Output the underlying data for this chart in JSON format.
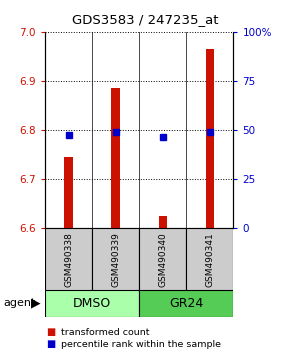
{
  "title": "GDS3583 / 247235_at",
  "samples": [
    "GSM490338",
    "GSM490339",
    "GSM490340",
    "GSM490341"
  ],
  "bar_values": [
    6.745,
    6.885,
    6.625,
    6.965
  ],
  "percentile_values": [
    47.5,
    49.0,
    46.5,
    49.0
  ],
  "ylim_left": [
    6.6,
    7.0
  ],
  "ylim_right": [
    0,
    100
  ],
  "yticks_left": [
    6.6,
    6.7,
    6.8,
    6.9,
    7.0
  ],
  "yticks_right": [
    0,
    25,
    50,
    75,
    100
  ],
  "ytick_labels_right": [
    "0",
    "25",
    "50",
    "75",
    "100%"
  ],
  "bar_color": "#cc1100",
  "dot_color": "#0000cc",
  "groups": [
    {
      "label": "DMSO",
      "indices": [
        0,
        1
      ],
      "color": "#aaffaa"
    },
    {
      "label": "GR24",
      "indices": [
        2,
        3
      ],
      "color": "#55cc55"
    }
  ],
  "agent_label": "agent",
  "legend_items": [
    {
      "color": "#cc1100",
      "label": "transformed count"
    },
    {
      "color": "#0000cc",
      "label": "percentile rank within the sample"
    }
  ],
  "sample_box_color": "#cccccc",
  "bar_width": 0.18
}
